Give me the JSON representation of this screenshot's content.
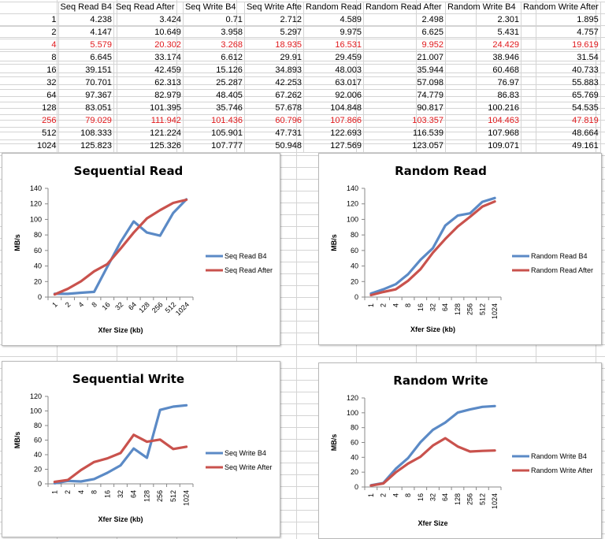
{
  "table": {
    "headers": [
      "",
      "Seq Read B4",
      "Seq Read After",
      "Seq Write B4",
      "Seq Write Afte",
      "Random Read",
      "Random Read After",
      "Random Write B4",
      "Random Write After"
    ],
    "rows": [
      [
        "1",
        "4.238",
        "3.424",
        "0.71",
        "2.712",
        "4.589",
        "2.498",
        "2.301",
        "1.895"
      ],
      [
        "2",
        "4.147",
        "10.649",
        "3.958",
        "5.297",
        "9.975",
        "6.625",
        "5.431",
        "4.757"
      ],
      [
        "4",
        "5.579",
        "20.302",
        "3.268",
        "18.935",
        "16.531",
        "9.952",
        "24.429",
        "19.619"
      ],
      [
        "8",
        "6.645",
        "33.174",
        "6.612",
        "29.91",
        "29.459",
        "21.007",
        "38.946",
        "31.54"
      ],
      [
        "16",
        "39.151",
        "42.459",
        "15.126",
        "34.893",
        "48.003",
        "35.944",
        "60.468",
        "40.733"
      ],
      [
        "32",
        "70.701",
        "62.313",
        "25.287",
        "42.253",
        "63.017",
        "57.098",
        "76.97",
        "55.883"
      ],
      [
        "64",
        "97.367",
        "82.979",
        "48.405",
        "67.262",
        "92.006",
        "74.779",
        "86.83",
        "65.769"
      ],
      [
        "128",
        "83.051",
        "101.395",
        "35.746",
        "57.678",
        "104.848",
        "90.817",
        "100.216",
        "54.535"
      ],
      [
        "256",
        "79.029",
        "111.942",
        "101.436",
        "60.796",
        "107.866",
        "103.357",
        "104.463",
        "47.819"
      ],
      [
        "512",
        "108.333",
        "121.224",
        "105.901",
        "47.731",
        "122.693",
        "116.539",
        "107.968",
        "48.664"
      ],
      [
        "1024",
        "125.823",
        "125.326",
        "107.777",
        "50.948",
        "127.569",
        "123.057",
        "109.071",
        "49.161"
      ]
    ],
    "highlight_rows": [
      2,
      8
    ],
    "highlight_color": "#e0191c"
  },
  "colors": {
    "b4": "#5b8ac6",
    "after": "#c9524d"
  },
  "chart_data": [
    {
      "type": "line",
      "title": "Sequential Read",
      "xlabel": "Xfer Size (kb)",
      "ylabel": "MB/s",
      "categories": [
        "1",
        "2",
        "4",
        "8",
        "16",
        "32",
        "64",
        "128",
        "256",
        "512",
        "1024"
      ],
      "ylim": [
        0,
        140
      ],
      "yticks": [
        0,
        20,
        40,
        60,
        80,
        100,
        120,
        140
      ],
      "tick_rotation": "slanted",
      "legend_position": "right",
      "series": [
        {
          "name": "Seq Read B4",
          "values": [
            4.238,
            4.147,
            5.579,
            6.645,
            39.151,
            70.701,
            97.367,
            83.051,
            79.029,
            108.333,
            125.823
          ]
        },
        {
          "name": "Seq Read After",
          "values": [
            3.424,
            10.649,
            20.302,
            33.174,
            42.459,
            62.313,
            82.979,
            101.395,
            111.942,
            121.224,
            125.326
          ]
        }
      ]
    },
    {
      "type": "line",
      "title": "Random Read",
      "xlabel": "Xfer Size (kb)",
      "ylabel": "MB/s",
      "categories": [
        "1",
        "2",
        "4",
        "8",
        "16",
        "32",
        "64",
        "128",
        "256",
        "512",
        "1024"
      ],
      "ylim": [
        0,
        140
      ],
      "yticks": [
        0,
        20,
        40,
        60,
        80,
        100,
        120,
        140
      ],
      "tick_rotation": "vertical",
      "legend_position": "right",
      "series": [
        {
          "name": "Random Read B4",
          "values": [
            4.589,
            9.975,
            16.531,
            29.459,
            48.003,
            63.017,
            92.006,
            104.848,
            107.866,
            122.693,
            127.569
          ]
        },
        {
          "name": "Random Read After",
          "values": [
            2.498,
            6.625,
            9.952,
            21.007,
            35.944,
            57.098,
            74.779,
            90.817,
            103.357,
            116.539,
            123.057
          ]
        }
      ]
    },
    {
      "type": "line",
      "title": "Sequential Write",
      "xlabel": "Xfer Size (kb)",
      "ylabel": "MB/s",
      "categories": [
        "1",
        "2",
        "4",
        "8",
        "16",
        "32",
        "64",
        "128",
        "256",
        "512",
        "1024"
      ],
      "ylim": [
        0,
        120
      ],
      "yticks": [
        0,
        20,
        40,
        60,
        80,
        100,
        120
      ],
      "tick_rotation": "vertical",
      "legend_position": "right",
      "series": [
        {
          "name": "Seq Write B4",
          "values": [
            0.71,
            3.958,
            3.268,
            6.612,
            15.126,
            25.287,
            48.405,
            35.746,
            101.436,
            105.901,
            107.777
          ]
        },
        {
          "name": "Seq Write After",
          "values": [
            2.712,
            5.297,
            18.935,
            29.91,
            34.893,
            42.253,
            67.262,
            57.678,
            60.796,
            47.731,
            50.948
          ]
        }
      ]
    },
    {
      "type": "line",
      "title": "Random Write",
      "xlabel": "Xfer Size",
      "ylabel": "MB/s",
      "categories": [
        "1",
        "2",
        "4",
        "8",
        "16",
        "32",
        "64",
        "128",
        "256",
        "512",
        "1024"
      ],
      "ylim": [
        0,
        120
      ],
      "yticks": [
        0,
        20,
        40,
        60,
        80,
        100,
        120
      ],
      "tick_rotation": "vertical",
      "legend_position": "right",
      "series": [
        {
          "name": "Random Write B4",
          "values": [
            2.301,
            5.431,
            24.429,
            38.946,
            60.468,
            76.97,
            86.83,
            100.216,
            104.463,
            107.968,
            109.071
          ]
        },
        {
          "name": "Random Write After",
          "values": [
            1.895,
            4.757,
            19.619,
            31.54,
            40.733,
            55.883,
            65.769,
            54.535,
            47.819,
            48.664,
            49.161
          ]
        }
      ]
    }
  ]
}
